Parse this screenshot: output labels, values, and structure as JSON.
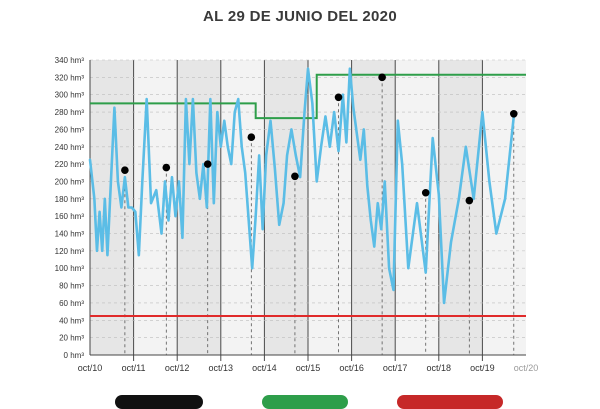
{
  "header": {
    "title": "AL 29 DE JUNIO DEL 2020"
  },
  "colors": {
    "series": "#5bbde6",
    "upper_line": "#2e9e4a",
    "lower_line": "#e02a2a",
    "band_dark": "#e6e6e6",
    "band_light": "#f3f3f3",
    "marker": "#000000"
  },
  "chart_data": {
    "type": "line",
    "title": "AL 29 DE JUNIO DEL 2020",
    "ylim": [
      0,
      340
    ],
    "yticks": [
      {
        "value": 0,
        "label": "0 hm³"
      },
      {
        "value": 20,
        "label": "20 hm³"
      },
      {
        "value": 40,
        "label": "40 hm³"
      },
      {
        "value": 60,
        "label": "60 hm³"
      },
      {
        "value": 80,
        "label": "80 hm³"
      },
      {
        "value": 100,
        "label": "100 hm³"
      },
      {
        "value": 120,
        "label": "120 hm³"
      },
      {
        "value": 140,
        "label": "140 hm³"
      },
      {
        "value": 160,
        "label": "160 hm³"
      },
      {
        "value": 180,
        "label": "180 hm³"
      },
      {
        "value": 200,
        "label": "200 hm³"
      },
      {
        "value": 220,
        "label": "220 hm³"
      },
      {
        "value": 240,
        "label": "240 hm³"
      },
      {
        "value": 260,
        "label": "260 hm³"
      },
      {
        "value": 280,
        "label": "280 hm³"
      },
      {
        "value": 300,
        "label": "300 hm³"
      },
      {
        "value": 320,
        "label": "320 hm³"
      },
      {
        "value": 340,
        "label": "340 hm³"
      }
    ],
    "xticks": [
      "oct/10",
      "oct/11",
      "oct/12",
      "oct/13",
      "oct/14",
      "oct/15",
      "oct/16",
      "oct/17",
      "oct/18",
      "oct/19",
      "oct/20"
    ],
    "xlim": [
      0,
      10
    ],
    "grid": true,
    "series": [
      {
        "x": [
          0,
          0.1,
          0.16,
          0.22,
          0.28,
          0.34,
          0.4,
          0.48,
          0.56,
          0.64,
          0.72,
          0.8,
          0.88,
          0.96,
          1.04,
          1.12,
          1.2,
          1.3,
          1.4,
          1.52,
          1.64,
          1.72,
          1.8,
          1.88,
          1.96,
          2.04,
          2.12,
          2.2,
          2.28,
          2.36,
          2.44,
          2.52,
          2.6,
          2.68,
          2.76,
          2.84,
          2.92,
          3.0,
          3.08,
          3.16,
          3.24,
          3.32,
          3.4,
          3.48,
          3.56,
          3.64,
          3.72,
          3.8,
          3.88,
          3.96,
          4.04,
          4.14,
          4.24,
          4.34,
          4.44,
          4.52,
          4.62,
          4.72,
          4.82,
          4.92,
          5.0,
          5.1,
          5.2,
          5.3,
          5.4,
          5.5,
          5.6,
          5.7,
          5.8,
          5.88,
          5.96,
          6.04,
          6.12,
          6.2,
          6.28,
          6.36,
          6.44,
          6.52,
          6.6,
          6.68,
          6.76,
          6.86,
          6.96,
          7.06,
          7.16,
          7.3,
          7.5,
          7.7,
          7.86,
          8.0,
          8.12,
          8.28,
          8.46,
          8.62,
          8.8,
          9.0,
          9.16,
          9.32,
          9.52,
          9.72
        ],
        "values": [
          225,
          180,
          120,
          165,
          120,
          180,
          115,
          200,
          285,
          200,
          170,
          205,
          170,
          170,
          165,
          115,
          200,
          295,
          175,
          190,
          140,
          200,
          155,
          205,
          160,
          200,
          135,
          295,
          220,
          295,
          210,
          180,
          220,
          170,
          295,
          175,
          280,
          240,
          270,
          240,
          220,
          280,
          295,
          240,
          210,
          155,
          100,
          160,
          230,
          145,
          230,
          270,
          215,
          150,
          175,
          230,
          260,
          230,
          205,
          280,
          330,
          290,
          200,
          240,
          275,
          240,
          280,
          235,
          300,
          245,
          330,
          285,
          255,
          225,
          260,
          195,
          155,
          125,
          175,
          145,
          200,
          100,
          75,
          270,
          220,
          100,
          175,
          95,
          250,
          185,
          60,
          130,
          180,
          240,
          180,
          280,
          200,
          140,
          180,
          275
        ]
      }
    ],
    "reference_lines": [
      {
        "segments": [
          {
            "x0": 0,
            "x1": 3.8,
            "y": 290
          },
          {
            "x0": 3.8,
            "x1": 5.2,
            "y": 273
          },
          {
            "x0": 5.2,
            "x1": 10,
            "y": 323
          }
        ]
      },
      {
        "segments": [
          {
            "x0": 0,
            "x1": 10,
            "y": 45
          }
        ]
      }
    ],
    "markers": [
      {
        "x": 0.8,
        "y": 213
      },
      {
        "x": 1.75,
        "y": 216
      },
      {
        "x": 2.7,
        "y": 220
      },
      {
        "x": 3.7,
        "y": 251
      },
      {
        "x": 4.7,
        "y": 206
      },
      {
        "x": 5.7,
        "y": 297
      },
      {
        "x": 6.7,
        "y": 320
      },
      {
        "x": 7.7,
        "y": 187
      },
      {
        "x": 8.7,
        "y": 178
      },
      {
        "x": 9.72,
        "y": 278
      }
    ]
  }
}
